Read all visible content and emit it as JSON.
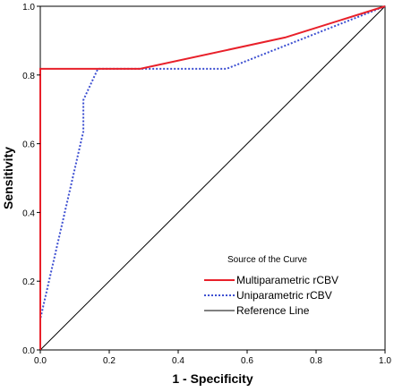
{
  "chart_data": {
    "type": "line",
    "title": "",
    "xlabel": "1 - Specificity",
    "ylabel": "Sensitivity",
    "xlim": [
      0.0,
      1.0
    ],
    "ylim": [
      0.0,
      1.0
    ],
    "x_ticks": [
      "0.0",
      "0.2",
      "0.4",
      "0.6",
      "0.8",
      "1.0"
    ],
    "y_ticks": [
      "0.0",
      "0.2",
      "0.4",
      "0.6",
      "0.8",
      "1.0"
    ],
    "grid": false,
    "legend": {
      "title": "Source of the Curve",
      "placement": "bottom-right",
      "entries": [
        "Multiparametric rCBV",
        "Uniparametric rCBV",
        "Reference Line"
      ]
    },
    "series": [
      {
        "name": "Multiparametric rCBV",
        "color": "#e8202a",
        "style": "solid",
        "x": [
          0.0,
          0.0,
          0.0,
          0.29,
          0.71,
          1.0
        ],
        "y": [
          0.0,
          0.09,
          0.818,
          0.818,
          0.909,
          1.0
        ]
      },
      {
        "name": "Uniparametric rCBV",
        "color": "#3d4fd1",
        "style": "dotted",
        "x": [
          0.0,
          0.0,
          0.125,
          0.125,
          0.167,
          0.54,
          1.0
        ],
        "y": [
          0.0,
          0.09,
          0.636,
          0.727,
          0.818,
          0.818,
          1.0
        ]
      },
      {
        "name": "Reference Line",
        "color": "#000000",
        "style": "solid",
        "x": [
          0.0,
          1.0
        ],
        "y": [
          0.0,
          1.0
        ]
      }
    ]
  }
}
